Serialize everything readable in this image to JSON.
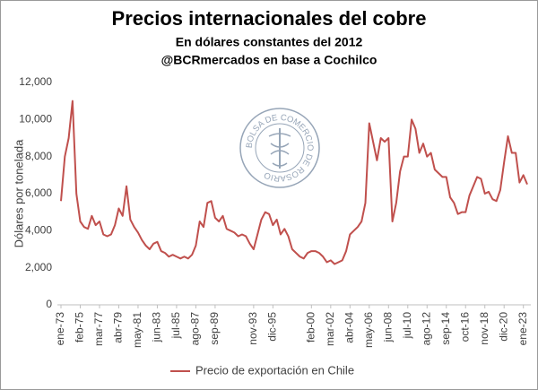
{
  "chart_data": {
    "type": "line",
    "title": "Precios internacionales del cobre",
    "subtitle": "En dólares constantes del 2012",
    "source": "@BCRmercados en base a Cochilco",
    "watermark": "BOLSA DE COMERCIO DE ROSARIO",
    "ylabel": "Dólares por tonelada",
    "ylim": [
      0,
      12000
    ],
    "yticks": [
      0,
      {
        "value": 2000,
        "label": "2,000"
      },
      {
        "value": 4000,
        "label": "4,000"
      },
      {
        "value": 6000,
        "label": "6,000"
      },
      {
        "value": 8000,
        "label": "8,000"
      },
      {
        "value": 10000,
        "label": "10,000"
      },
      {
        "value": 12000,
        "label": "12,000"
      }
    ],
    "grid": false,
    "legend": "bottom",
    "categories": [
      "ene-73",
      null,
      null,
      null,
      null,
      "feb-75",
      null,
      null,
      null,
      null,
      "mar-77",
      null,
      null,
      null,
      null,
      "abr-79",
      null,
      null,
      null,
      null,
      "may-81",
      null,
      null,
      null,
      null,
      "jun-83",
      null,
      null,
      null,
      null,
      "jul-85",
      null,
      null,
      null,
      null,
      "ago-87",
      null,
      null,
      null,
      null,
      "sep-89",
      null,
      null,
      null,
      null,
      null,
      null,
      null,
      null,
      null,
      "nov-93",
      null,
      null,
      null,
      null,
      "dic-95",
      null,
      null,
      null,
      null,
      null,
      null,
      null,
      null,
      null,
      "feb-00",
      null,
      null,
      null,
      null,
      "mar-02",
      null,
      null,
      null,
      null,
      "abr-04",
      null,
      null,
      null,
      null,
      "may-06",
      null,
      null,
      null,
      null,
      "jun-08",
      null,
      null,
      null,
      null,
      "jul-10",
      null,
      null,
      null,
      null,
      "ago-12",
      null,
      null,
      null,
      null,
      "sep-14",
      null,
      null,
      null,
      null,
      "oct-16",
      null,
      null,
      null,
      null,
      "nov-18",
      null,
      null,
      null,
      null,
      "dic-20",
      null,
      null,
      null,
      null,
      "ene-23",
      null
    ],
    "series": [
      {
        "name": "Precio de exportación en Chile",
        "color": "#c0504d",
        "values": [
          5600,
          8000,
          9000,
          11000,
          6000,
          4500,
          4200,
          4100,
          4800,
          4300,
          4500,
          3800,
          3700,
          3800,
          4300,
          5200,
          4800,
          6400,
          4600,
          4200,
          3900,
          3500,
          3200,
          3000,
          3300,
          3400,
          2900,
          2800,
          2600,
          2700,
          2600,
          2500,
          2600,
          2500,
          2700,
          3200,
          4500,
          4200,
          5500,
          5600,
          4700,
          4500,
          4800,
          4100,
          4000,
          3900,
          3700,
          3800,
          3700,
          3300,
          3000,
          3800,
          4600,
          5000,
          4900,
          4300,
          4600,
          3800,
          4100,
          3700,
          3000,
          2800,
          2600,
          2500,
          2800,
          2900,
          2900,
          2800,
          2600,
          2300,
          2400,
          2200,
          2300,
          2400,
          2900,
          3800,
          4000,
          4200,
          4500,
          5500,
          9800,
          8800,
          7800,
          9000,
          8800,
          9000,
          4500,
          5500,
          7200,
          8000,
          8000,
          10000,
          9500,
          8200,
          8700,
          8000,
          8200,
          7300,
          7100,
          6900,
          6900,
          5800,
          5500,
          4900,
          5000,
          5000,
          5900,
          6400,
          6900,
          6800,
          6000,
          6100,
          5700,
          5600,
          6200,
          7700,
          9100,
          8200,
          8200,
          6600,
          7000,
          6500
        ]
      }
    ]
  }
}
